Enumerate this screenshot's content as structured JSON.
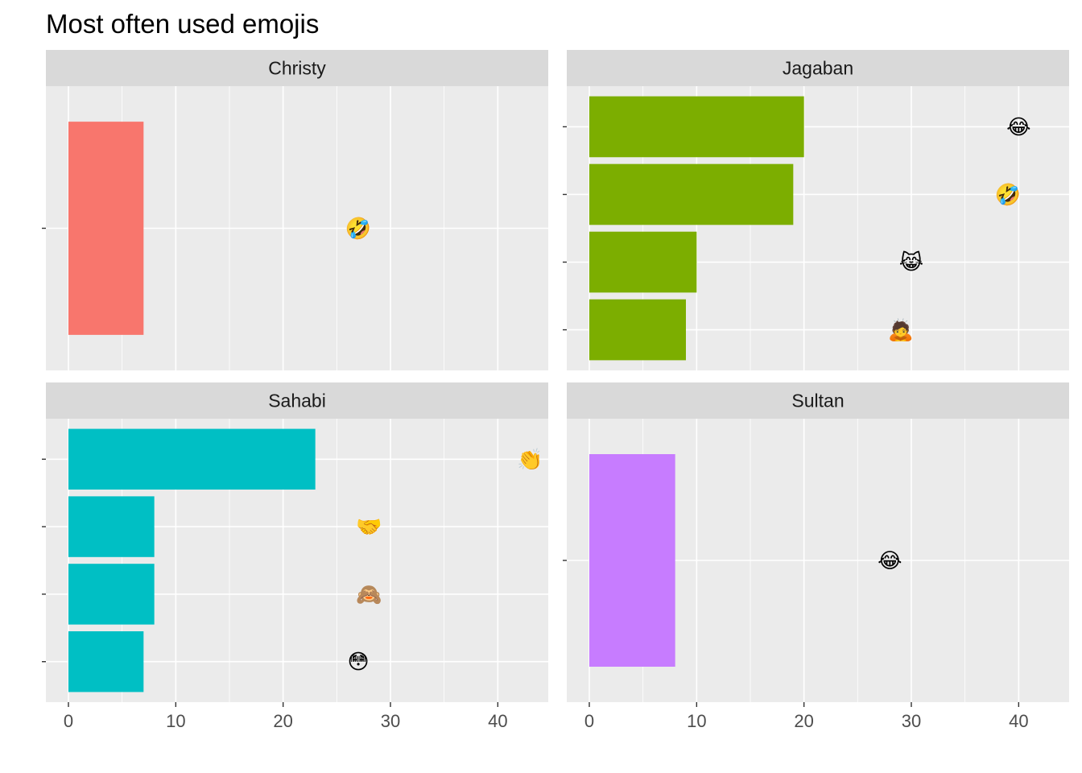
{
  "chart_data": {
    "type": "bar",
    "title": "Most often used emojis",
    "xlim": [
      -2.1,
      44.7
    ],
    "x_ticks": [
      0,
      10,
      20,
      30,
      40
    ],
    "grid": true,
    "orientation": "horizontal",
    "facets": [
      {
        "name": "Christy",
        "color": "#F8766D",
        "bars": [
          {
            "value": 7,
            "label_x": 27,
            "emoji": "rolling-on-floor-laughing",
            "glyph": "🤣"
          }
        ]
      },
      {
        "name": "Jagaban",
        "color": "#7CAE00",
        "bars": [
          {
            "value": 20,
            "label_x": 40,
            "emoji": "face-with-tears-of-joy",
            "glyph": "😂"
          },
          {
            "value": 19,
            "label_x": 39,
            "emoji": "rolling-on-floor-laughing",
            "glyph": "🤣"
          },
          {
            "value": 10,
            "label_x": 30,
            "emoji": "cat-with-tears-of-joy",
            "glyph": "😹"
          },
          {
            "value": 9,
            "label_x": 29,
            "emoji": "person-bowing",
            "glyph": "🙇"
          }
        ]
      },
      {
        "name": "Sahabi",
        "color": "#00BFC4",
        "bars": [
          {
            "value": 23,
            "label_x": 43,
            "emoji": "clapping-hands",
            "glyph": "👏"
          },
          {
            "value": 8,
            "label_x": 28,
            "emoji": "handshake",
            "glyph": "🤝"
          },
          {
            "value": 8,
            "label_x": 28,
            "emoji": "see-no-evil-monkey",
            "glyph": "🙈"
          },
          {
            "value": 7,
            "label_x": 27,
            "emoji": "flushed-face",
            "glyph": "😳"
          }
        ]
      },
      {
        "name": "Sultan",
        "color": "#C77CFF",
        "bars": [
          {
            "value": 8,
            "label_x": 28,
            "emoji": "face-with-tears-of-joy",
            "glyph": "😂"
          }
        ]
      }
    ]
  }
}
